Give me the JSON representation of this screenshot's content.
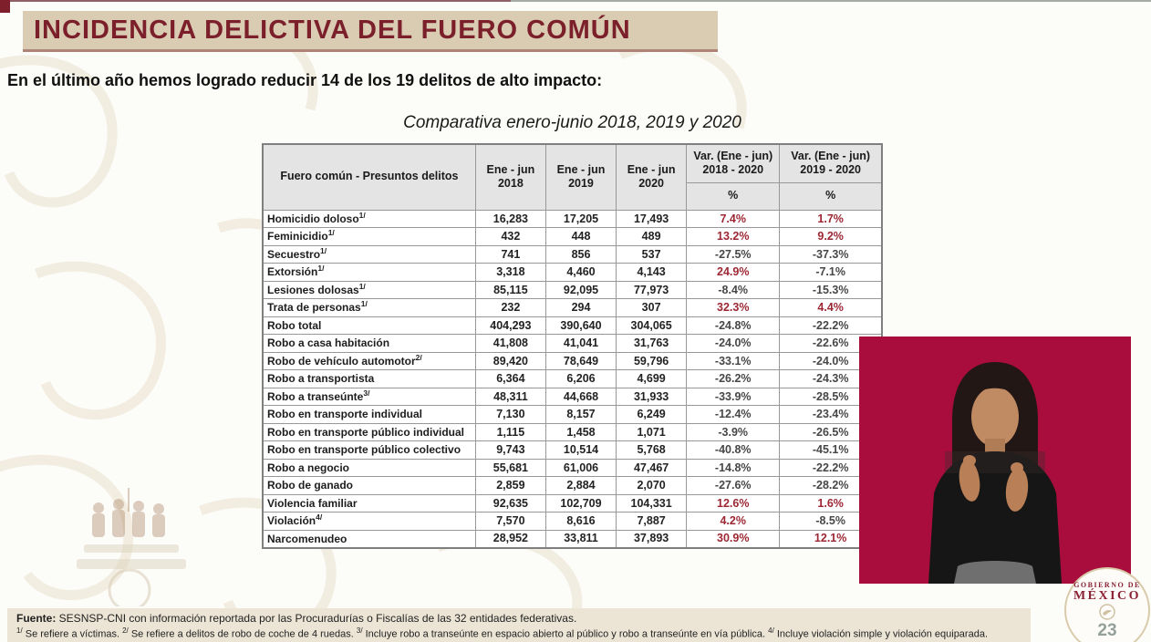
{
  "page": {
    "title": "INCIDENCIA DELICTIVA DEL FUERO COMÚN",
    "subtitle": "En el último año hemos logrado reducir 14 de los 19 delitos de alto impacto:",
    "page_number": "23"
  },
  "table": {
    "caption": "Comparativa enero-junio 2018, 2019 y 2020",
    "col_headers": {
      "delitos": "Fuero común - Presuntos delitos",
      "y2018_l1": "Ene - jun",
      "y2018_l2": "2018",
      "y2019_l1": "Ene - jun",
      "y2019_l2": "2019",
      "y2020_l1": "Ene - jun",
      "y2020_l2": "2020",
      "var1_l1": "Var. (Ene - jun)",
      "var1_l2": "2018 - 2020",
      "var2_l1": "Var. (Ene - jun)",
      "var2_l2": "2019 - 2020",
      "pct": "%"
    },
    "rows": [
      {
        "label": "Homicidio doloso",
        "sup": "1/",
        "y2018": "16,283",
        "y2019": "17,205",
        "y2020": "17,493",
        "var_2018_2020": "7.4%",
        "var_2019_2020": "1.7%"
      },
      {
        "label": "Feminicidio",
        "sup": "1/",
        "y2018": "432",
        "y2019": "448",
        "y2020": "489",
        "var_2018_2020": "13.2%",
        "var_2019_2020": "9.2%"
      },
      {
        "label": "Secuestro",
        "sup": "1/",
        "y2018": "741",
        "y2019": "856",
        "y2020": "537",
        "var_2018_2020": "-27.5%",
        "var_2019_2020": "-37.3%"
      },
      {
        "label": "Extorsión",
        "sup": "1/",
        "y2018": "3,318",
        "y2019": "4,460",
        "y2020": "4,143",
        "var_2018_2020": "24.9%",
        "var_2019_2020": "-7.1%"
      },
      {
        "label": "Lesiones dolosas",
        "sup": "1/",
        "y2018": "85,115",
        "y2019": "92,095",
        "y2020": "77,973",
        "var_2018_2020": "-8.4%",
        "var_2019_2020": "-15.3%"
      },
      {
        "label": "Trata de personas",
        "sup": "1/",
        "y2018": "232",
        "y2019": "294",
        "y2020": "307",
        "var_2018_2020": "32.3%",
        "var_2019_2020": "4.4%"
      },
      {
        "label": "Robo total",
        "sup": "",
        "y2018": "404,293",
        "y2019": "390,640",
        "y2020": "304,065",
        "var_2018_2020": "-24.8%",
        "var_2019_2020": "-22.2%"
      },
      {
        "label": "Robo a casa habitación",
        "sup": "",
        "y2018": "41,808",
        "y2019": "41,041",
        "y2020": "31,763",
        "var_2018_2020": "-24.0%",
        "var_2019_2020": "-22.6%"
      },
      {
        "label": "Robo de vehículo automotor",
        "sup": "2/",
        "y2018": "89,420",
        "y2019": "78,649",
        "y2020": "59,796",
        "var_2018_2020": "-33.1%",
        "var_2019_2020": "-24.0%"
      },
      {
        "label": "Robo a transportista",
        "sup": "",
        "y2018": "6,364",
        "y2019": "6,206",
        "y2020": "4,699",
        "var_2018_2020": "-26.2%",
        "var_2019_2020": "-24.3%"
      },
      {
        "label": "Robo a transeúnte",
        "sup": "3/",
        "y2018": "48,311",
        "y2019": "44,668",
        "y2020": "31,933",
        "var_2018_2020": "-33.9%",
        "var_2019_2020": "-28.5%"
      },
      {
        "label": "Robo en transporte individual",
        "sup": "",
        "y2018": "7,130",
        "y2019": "8,157",
        "y2020": "6,249",
        "var_2018_2020": "-12.4%",
        "var_2019_2020": "-23.4%"
      },
      {
        "label": "Robo en transporte público individual",
        "sup": "",
        "y2018": "1,115",
        "y2019": "1,458",
        "y2020": "1,071",
        "var_2018_2020": "-3.9%",
        "var_2019_2020": "-26.5%"
      },
      {
        "label": "Robo en transporte público colectivo",
        "sup": "",
        "y2018": "9,743",
        "y2019": "10,514",
        "y2020": "5,768",
        "var_2018_2020": "-40.8%",
        "var_2019_2020": "-45.1%"
      },
      {
        "label": "Robo a negocio",
        "sup": "",
        "y2018": "55,681",
        "y2019": "61,006",
        "y2020": "47,467",
        "var_2018_2020": "-14.8%",
        "var_2019_2020": "-22.2%"
      },
      {
        "label": "Robo de ganado",
        "sup": "",
        "y2018": "2,859",
        "y2019": "2,884",
        "y2020": "2,070",
        "var_2018_2020": "-27.6%",
        "var_2019_2020": "-28.2%"
      },
      {
        "label": "Violencia familiar",
        "sup": "",
        "y2018": "92,635",
        "y2019": "102,709",
        "y2020": "104,331",
        "var_2018_2020": "12.6%",
        "var_2019_2020": "1.6%"
      },
      {
        "label": "Violación",
        "sup": "4/",
        "y2018": "7,570",
        "y2019": "8,616",
        "y2020": "7,887",
        "var_2018_2020": "4.2%",
        "var_2019_2020": "-8.5%"
      },
      {
        "label": "Narcomenudeo",
        "sup": "",
        "y2018": "28,952",
        "y2019": "33,811",
        "y2020": "37,893",
        "var_2018_2020": "30.9%",
        "var_2019_2020": "12.1%"
      }
    ]
  },
  "footer": {
    "source_label": "Fuente:",
    "source_text": " SESNSP-CNI con información reportada por las Procuradurías o Fiscalías de las 32 entidades federativas.",
    "notes": [
      {
        "sup": "1/",
        "text": "Se refiere a víctimas."
      },
      {
        "sup": "2/",
        "text": "Se refiere a delitos de robo de coche de 4 ruedas."
      },
      {
        "sup": "3/",
        "text": "Incluye robo a transeúnte en espacio abierto al público y robo a transeúnte en vía pública."
      },
      {
        "sup": "4/",
        "text": "Incluye violación simple y violación equiparada."
      }
    ]
  },
  "logo": {
    "line1": "GOBIERNO DE",
    "line2": "MÉXICO"
  },
  "colors": {
    "accent_maroon": "#7b1f2b",
    "title_bg": "#d9ccb2",
    "positive_pct": "#9c2733",
    "negative_pct": "#474747",
    "video_bg": "#a80d3e",
    "footer_bg": "#ece5d6"
  }
}
